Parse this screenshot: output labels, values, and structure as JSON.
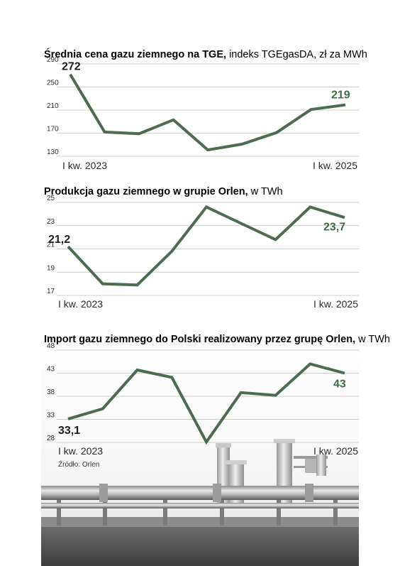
{
  "colors": {
    "line": "#4d6b50",
    "grid": "#bfbfbf",
    "label_dark": "#1e1e1e",
    "label_green": "#3f6b45"
  },
  "chart_data": [
    {
      "type": "line",
      "title_bold": "Średnia cena gazu ziemnego na TGE,",
      "title_rest": " indeks TGEgasDA, zł za MWh",
      "yticks": [
        "290",
        "250",
        "210",
        "170",
        "130"
      ],
      "ytick_values": [
        290,
        250,
        210,
        170,
        130
      ],
      "ylim": [
        130,
        290
      ],
      "x_first_label": "I kw. 2023",
      "x_last_label": "I kw. 2025",
      "values": [
        272,
        172,
        169,
        193,
        141,
        151,
        171,
        211,
        219
      ],
      "first_label": "272",
      "last_label": "219"
    },
    {
      "type": "line",
      "title_bold": "Produkcja gazu ziemnego w grupie Orlen,",
      "title_rest": " w TWh",
      "yticks": [
        "25",
        "23",
        "21",
        "19",
        "17"
      ],
      "ytick_values": [
        25,
        23,
        21,
        19,
        17
      ],
      "ylim": [
        17,
        25
      ],
      "x_first_label": "I kw. 2023",
      "x_last_label": "I kw. 2025",
      "values": [
        21.2,
        18.0,
        17.9,
        20.8,
        24.6,
        23.2,
        21.8,
        24.6,
        23.7
      ],
      "first_label": "21,2",
      "last_label": "23,7"
    },
    {
      "type": "line",
      "title_bold": "Import gazu ziemnego do Polski realizowany przez grupę Orlen,",
      "title_rest": " w TWh",
      "yticks": [
        "48",
        "43",
        "38",
        "33",
        "28"
      ],
      "ytick_values": [
        48,
        43,
        38,
        33,
        28
      ],
      "ylim": [
        28,
        48
      ],
      "x_first_label": "I kw. 2023",
      "x_last_label": "I kw. 2025",
      "values": [
        33.1,
        35.3,
        43.7,
        42.1,
        28.1,
        38.8,
        38.2,
        45.0,
        43.0
      ],
      "first_label": "33,1",
      "last_label": "43"
    }
  ],
  "source": "Źródło: Orlen"
}
